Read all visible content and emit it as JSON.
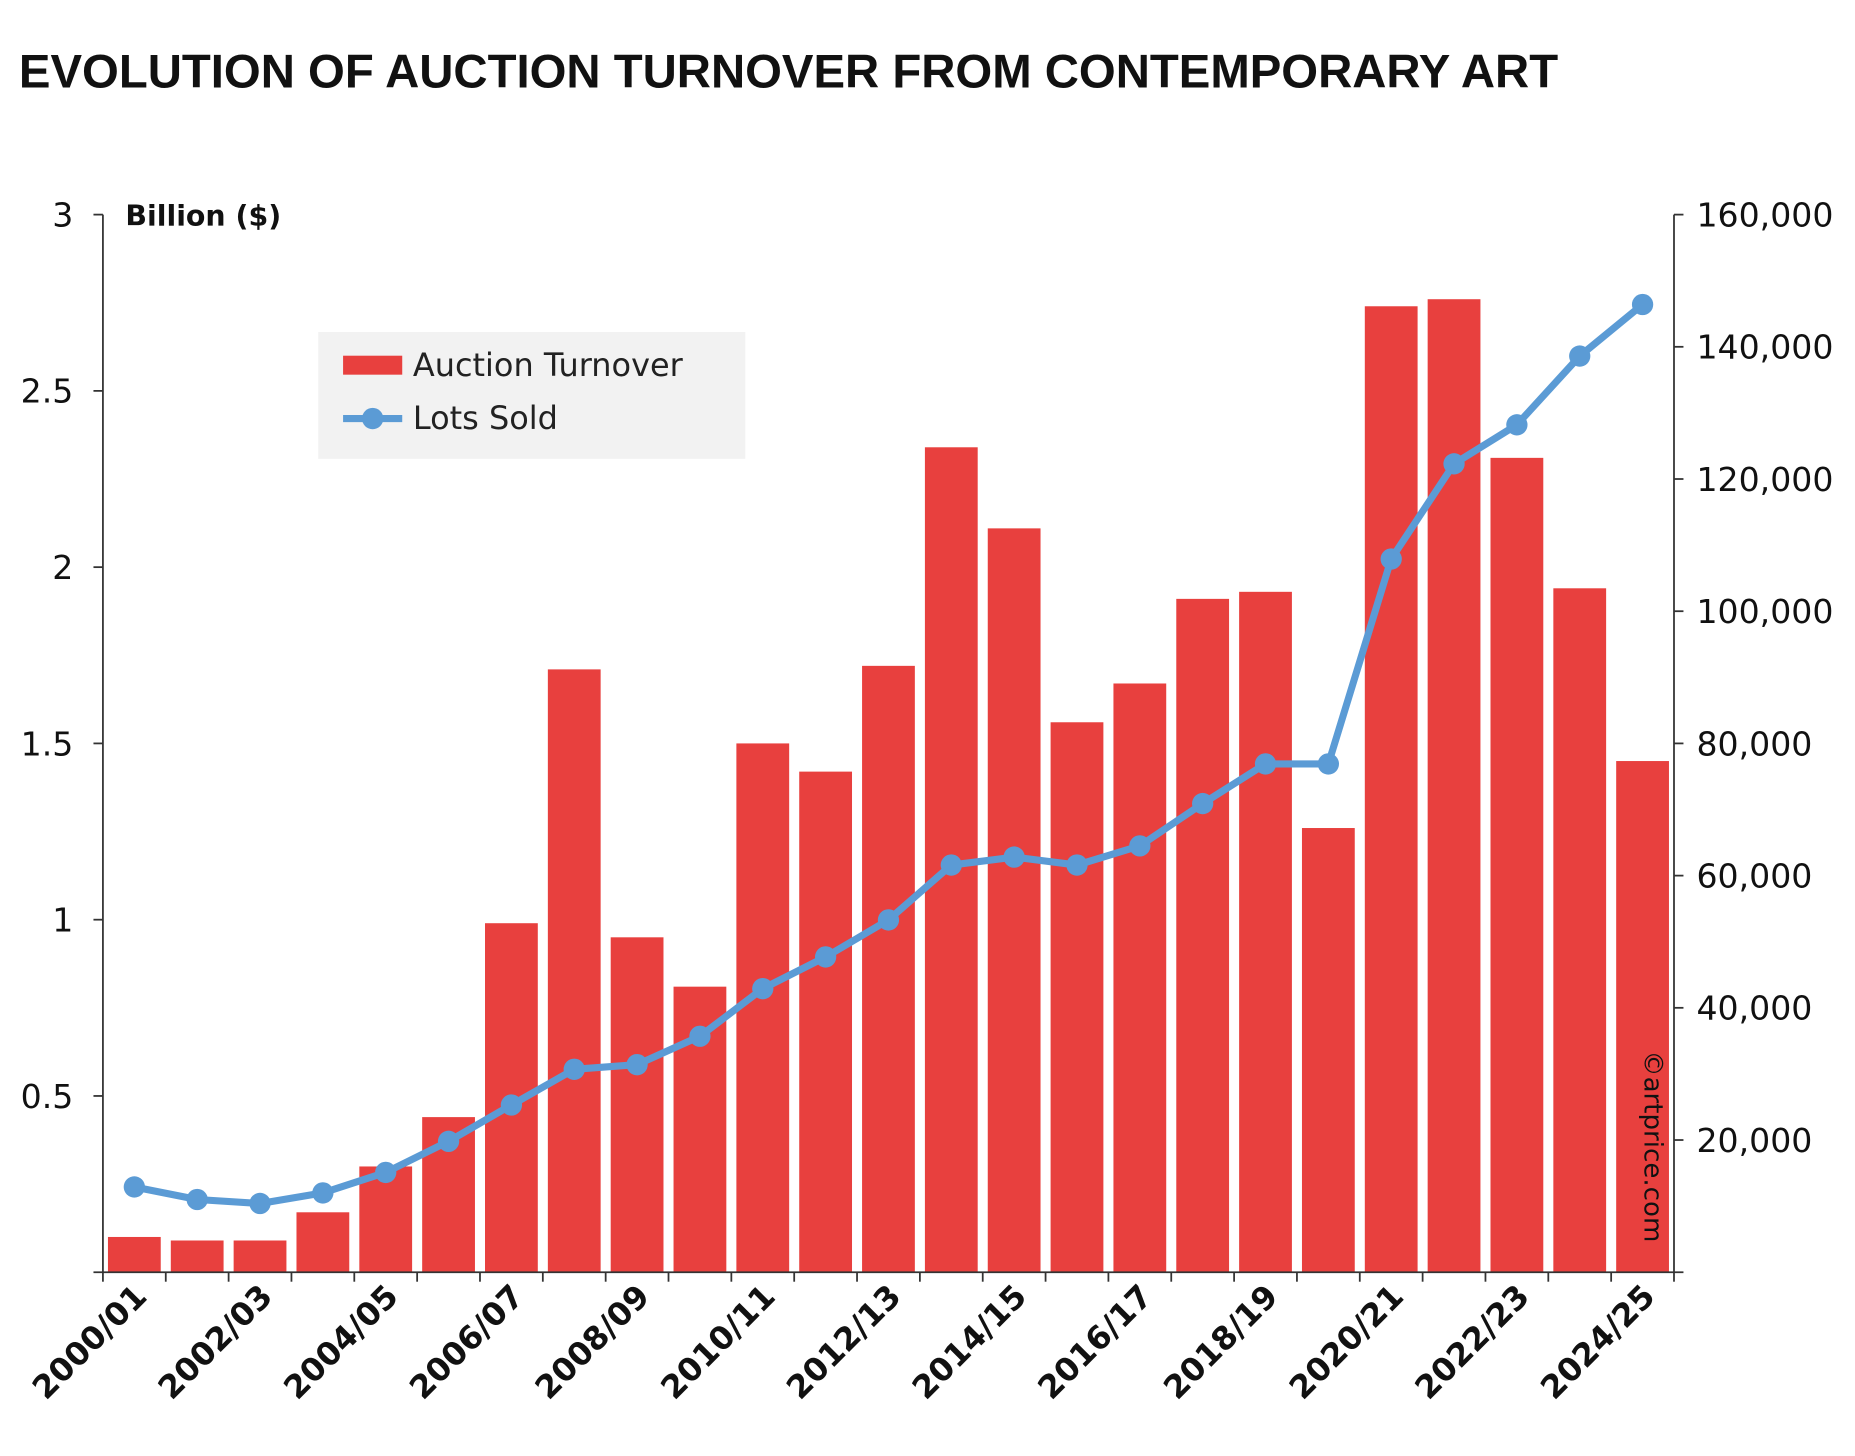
{
  "chart_data": {
    "type": "bar+line",
    "title": "EVOLUTION OF AUCTION TURNOVER FROM CONTEMPORARY ART",
    "left_axis_unit": "Billion ($)",
    "left_ylim": [
      0,
      3
    ],
    "left_ticks": [
      "0.5",
      "1",
      "1.5",
      "2",
      "2.5",
      "3"
    ],
    "left_tick_values": [
      0.5,
      1,
      1.5,
      2,
      2.5,
      3
    ],
    "right_ylim": [
      0,
      160000
    ],
    "right_ticks": [
      "20,000",
      "40,000",
      "60,000",
      "80,000",
      "100,000",
      "120,000",
      "140,000",
      "160,000"
    ],
    "right_tick_values": [
      20000,
      40000,
      60000,
      80000,
      100000,
      120000,
      140000,
      160000
    ],
    "categories": [
      "2000/01",
      "2001/02",
      "2002/03",
      "2003/04",
      "2004/05",
      "2005/06",
      "2006/07",
      "2007/08",
      "2008/09",
      "2009/10",
      "2010/11",
      "2011/12",
      "2012/13",
      "2013/14",
      "2014/15",
      "2015/16",
      "2016/17",
      "2017/18",
      "2018/19",
      "2019/20",
      "2020/21",
      "2021/22",
      "2022/23",
      "2023/24",
      "2024/25"
    ],
    "x_tick_labels": [
      "2000/01",
      "2002/03",
      "2004/05",
      "2006/07",
      "2008/09",
      "2010/11",
      "2012/13",
      "2014/15",
      "2016/17",
      "2018/19",
      "2020/21",
      "2022/23",
      "2024/25"
    ],
    "series": [
      {
        "name": "Auction Turnover",
        "type": "bar",
        "axis": "left",
        "color": "#e8403e",
        "values": [
          0.1,
          0.09,
          0.09,
          0.17,
          0.3,
          0.44,
          0.99,
          1.71,
          0.95,
          0.81,
          1.5,
          1.42,
          1.72,
          2.34,
          2.11,
          1.56,
          1.67,
          1.91,
          1.93,
          1.26,
          2.74,
          2.76,
          2.31,
          1.94,
          1.45
        ]
      },
      {
        "name": "Lots Sold",
        "type": "line",
        "axis": "right",
        "color": "#5b9bd5",
        "values": [
          12900,
          11000,
          10400,
          12000,
          15100,
          19800,
          25300,
          30700,
          31400,
          35700,
          42900,
          47700,
          53300,
          61600,
          62800,
          61600,
          64500,
          70900,
          76900,
          76900,
          107900,
          122300,
          128200,
          138600,
          146400
        ]
      }
    ],
    "legend_placement": "top-left",
    "legend_bg": "#f2f2f2",
    "copyright": "©artprice.com"
  }
}
